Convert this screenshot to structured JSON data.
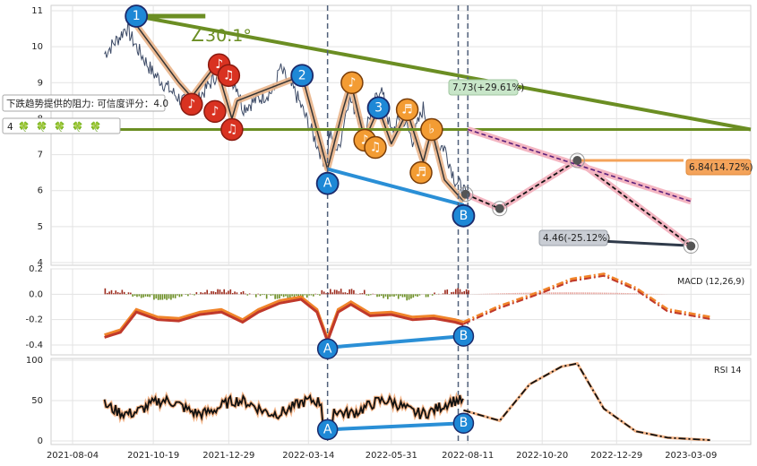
{
  "chart_data": {
    "type": "line",
    "x_tick_labels": [
      "2021-08-04",
      "2021-10-19",
      "2021-12-29",
      "2022-03-14",
      "2022-05-31",
      "2022-08-11",
      "2022-10-20",
      "2022-12-29",
      "2023-03-09"
    ],
    "x_tick_days": [
      0,
      76,
      147,
      222,
      300,
      372,
      442,
      512,
      582
    ],
    "price_panel": {
      "ylim": [
        4,
        11
      ],
      "y_ticks": [
        4,
        5,
        6,
        7,
        8,
        9,
        10,
        11
      ],
      "series": [
        {
          "values_x": [
            30,
            45,
            50,
            60,
            75,
            95,
            112,
            140,
            155,
            160,
            190,
            195,
            210,
            240,
            230,
            250,
            260,
            275,
            290,
            300,
            310,
            320,
            330,
            340,
            350,
            360,
            368,
            372
          ],
          "values_y": [
            9.8,
            10.3,
            10.55,
            10.0,
            9.3,
            8.7,
            8.3,
            9.4,
            8.9,
            8.3,
            8.8,
            9.4,
            8.7,
            6.6,
            8.2,
            7.1,
            8.6,
            7.7,
            8.9,
            7.6,
            8.1,
            7.4,
            8.3,
            7.3,
            7.2,
            6.3,
            6.0,
            5.7
          ]
        }
      ],
      "resistance_label": "下跌趋势提供的阻力: 可信度评分：4.0",
      "angle_label": "∠30.1°",
      "trendline_value_label": "7.73(+29.61%)",
      "upper_target_label": "6.84(14.72%)",
      "lower_target_label": "4.46(-25.12%)",
      "pivots": [
        {
          "label": "1",
          "x": 60,
          "y": 10.85,
          "style": "blue"
        },
        {
          "label": "2",
          "x": 216,
          "y": 9.2,
          "style": "blue"
        },
        {
          "label": "3",
          "x": 288,
          "y": 8.3,
          "style": "blue"
        },
        {
          "label": "A",
          "x": 240,
          "y": 6.2,
          "style": "blue"
        },
        {
          "label": "B",
          "x": 368,
          "y": 5.3,
          "style": "blue"
        }
      ],
      "note_markers": [
        {
          "label": "♪",
          "x": 138,
          "y": 9.5,
          "style": "red"
        },
        {
          "label": "♫",
          "x": 147,
          "y": 9.2,
          "style": "red"
        },
        {
          "label": "♪",
          "x": 112,
          "y": 8.4,
          "style": "red"
        },
        {
          "label": "♪",
          "x": 134,
          "y": 8.2,
          "style": "red"
        },
        {
          "label": "♫",
          "x": 150,
          "y": 7.7,
          "style": "red"
        },
        {
          "label": "♪",
          "x": 263,
          "y": 9.0,
          "style": "orange"
        },
        {
          "label": "♪",
          "x": 275,
          "y": 7.4,
          "style": "orange"
        },
        {
          "label": "♫",
          "x": 285,
          "y": 7.2,
          "style": "orange"
        },
        {
          "label": "♬",
          "x": 315,
          "y": 8.25,
          "style": "orange"
        },
        {
          "label": "♭",
          "x": 338,
          "y": 7.7,
          "style": "orange"
        },
        {
          "label": "♬",
          "x": 328,
          "y": 6.5,
          "style": "orange"
        }
      ],
      "indicator_values": [
        "4",
        "🍀",
        "🍀",
        "🍀",
        "🍀",
        "🍀"
      ]
    },
    "macd_panel": {
      "title": "MACD (12,26,9)",
      "ylim": [
        -0.45,
        0.2
      ],
      "y_ticks": [
        0.2,
        0.0,
        -0.2,
        -0.4
      ],
      "divergence_labels": [
        "A",
        "B"
      ]
    },
    "rsi_panel": {
      "title": "RSI 14",
      "ylim": [
        0,
        100
      ],
      "y_ticks": [
        0,
        50,
        100
      ],
      "divergence_labels": [
        "A",
        "B"
      ]
    }
  }
}
